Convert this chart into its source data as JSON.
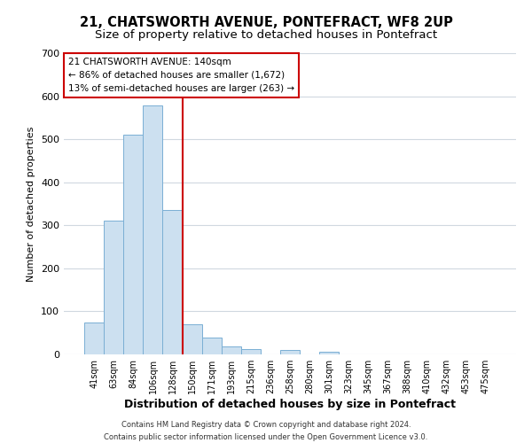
{
  "title": "21, CHATSWORTH AVENUE, PONTEFRACT, WF8 2UP",
  "subtitle": "Size of property relative to detached houses in Pontefract",
  "xlabel": "Distribution of detached houses by size in Pontefract",
  "ylabel": "Number of detached properties",
  "bar_labels": [
    "41sqm",
    "63sqm",
    "84sqm",
    "106sqm",
    "128sqm",
    "150sqm",
    "171sqm",
    "193sqm",
    "215sqm",
    "236sqm",
    "258sqm",
    "280sqm",
    "301sqm",
    "323sqm",
    "345sqm",
    "367sqm",
    "388sqm",
    "410sqm",
    "432sqm",
    "453sqm",
    "475sqm"
  ],
  "bar_values": [
    75,
    310,
    510,
    578,
    335,
    70,
    40,
    18,
    13,
    0,
    10,
    0,
    6,
    0,
    0,
    0,
    0,
    0,
    0,
    0,
    0
  ],
  "bar_color": "#cce0f0",
  "bar_edge_color": "#7aafd4",
  "vline_color": "#cc0000",
  "ylim": [
    0,
    700
  ],
  "yticks": [
    0,
    100,
    200,
    300,
    400,
    500,
    600,
    700
  ],
  "annotation_line1": "21 CHATSWORTH AVENUE: 140sqm",
  "annotation_line2": "← 86% of detached houses are smaller (1,672)",
  "annotation_line3": "13% of semi-detached houses are larger (263) →",
  "annotation_box_color": "#cc0000",
  "footer_line1": "Contains HM Land Registry data © Crown copyright and database right 2024.",
  "footer_line2": "Contains public sector information licensed under the Open Government Licence v3.0.",
  "background_color": "#ffffff",
  "grid_color": "#d0d8e0",
  "title_fontsize": 10.5,
  "subtitle_fontsize": 9.5
}
